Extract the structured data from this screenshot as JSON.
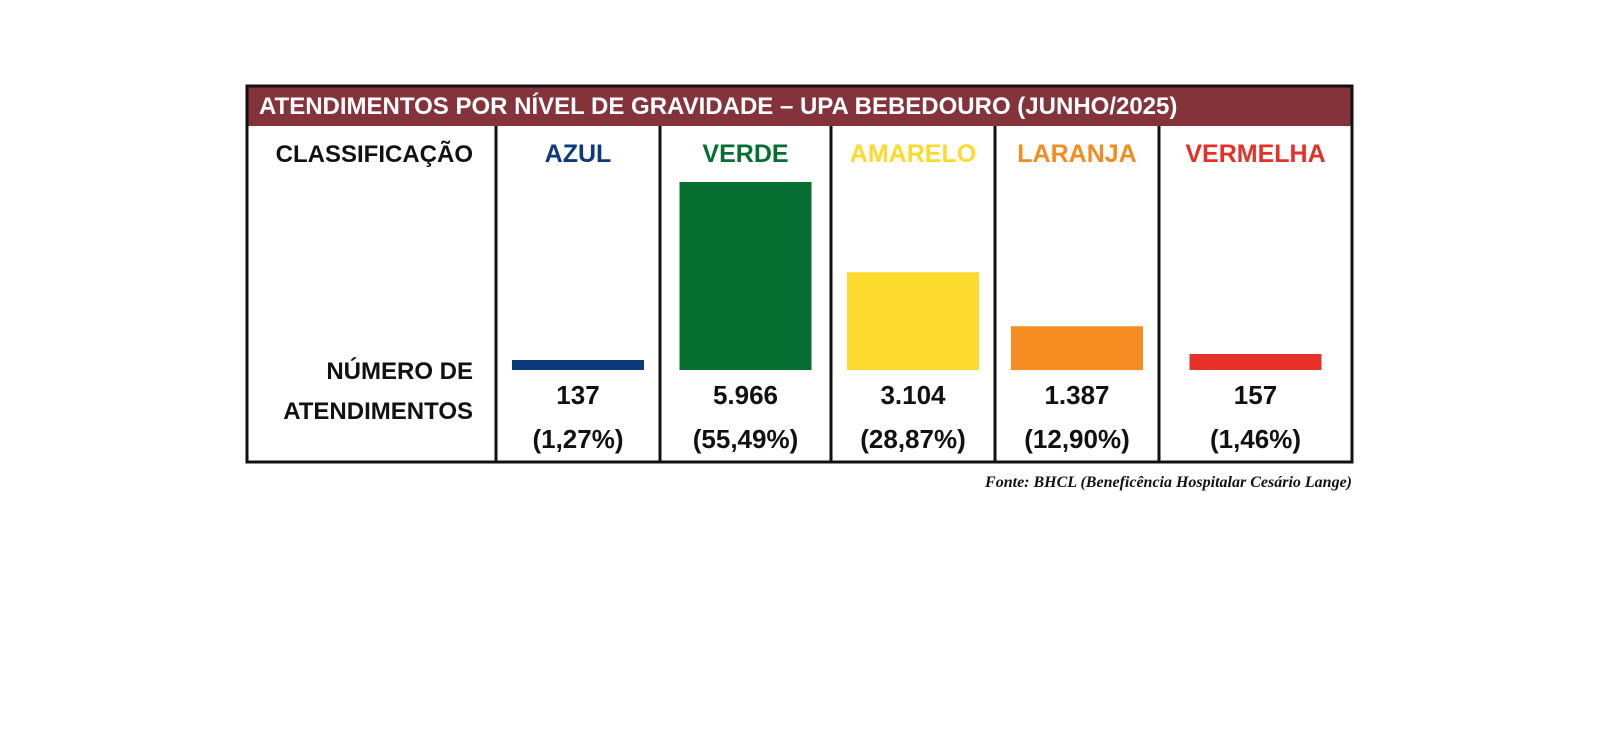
{
  "title": "ATENDIMENTOS POR NÍVEL DE GRAVIDADE  – UPA BEBEDOURO (JUNHO/2025)",
  "row_labels": {
    "classification": "CLASSIFICAÇÃO",
    "count_line1": "NÚMERO DE",
    "count_line2": "ATENDIMENTOS"
  },
  "source": "Fonte: BHCL (Beneficência Hospitalar Cesário Lange)",
  "colors": {
    "header_bg": "#84333a",
    "border": "#111111"
  },
  "chart_data": {
    "type": "bar",
    "title": "ATENDIMENTOS POR NÍVEL DE GRAVIDADE  – UPA BEBEDOURO (JUNHO/2025)",
    "categories": [
      "AZUL",
      "VERDE",
      "AMARELO",
      "LARANJA",
      "VERMELHA"
    ],
    "values": [
      137,
      5966,
      3104,
      1387,
      157
    ],
    "value_labels": [
      "137",
      "5.966",
      "3.104",
      "1.387",
      "157"
    ],
    "percent_labels": [
      "(1,27%)",
      "(55,49%)",
      "(28,87%)",
      "(12,90%)",
      "(1,46%)"
    ],
    "colors": [
      "#0c3a7c",
      "#056f32",
      "#fddb2e",
      "#f48c22",
      "#e63128"
    ],
    "ylim": [
      0,
      5966
    ],
    "grid": false
  }
}
